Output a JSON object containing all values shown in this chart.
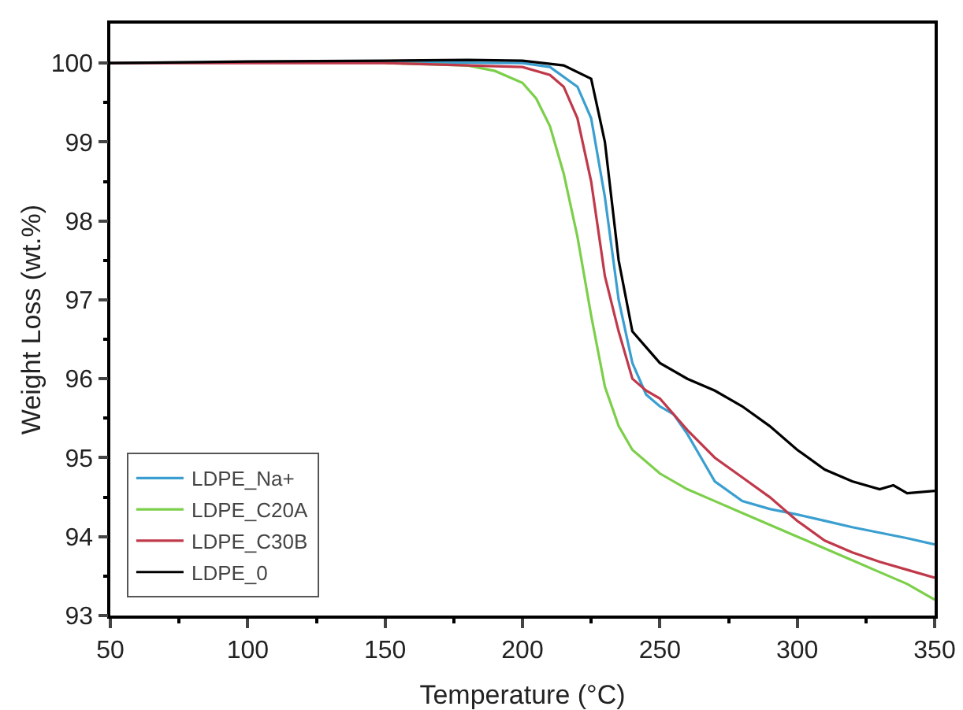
{
  "chart_data": {
    "type": "line",
    "xlabel": "Temperature (°C)",
    "ylabel": "Weight Loss (wt.%)",
    "xlim": [
      50,
      350
    ],
    "xticks": [
      50,
      100,
      150,
      200,
      250,
      300,
      350
    ],
    "ylim": [
      93,
      100.5
    ],
    "yticks": [
      93,
      94,
      95,
      96,
      97,
      98,
      99,
      100
    ],
    "grid": false,
    "legend": "bottom left",
    "marker": "none",
    "line_style": "solid",
    "series": [
      {
        "name": "LDPE_Na+",
        "color": "#3a9fd0",
        "x": [
          50,
          100,
          150,
          200,
          210,
          220,
          225,
          230,
          235,
          240,
          245,
          250,
          255,
          260,
          265,
          270,
          280,
          290,
          300,
          310,
          320,
          330,
          340,
          350
        ],
        "values": [
          100,
          100.01,
          100.01,
          100,
          99.95,
          99.7,
          99.3,
          98.3,
          97.0,
          96.2,
          95.8,
          95.65,
          95.55,
          95.3,
          95.0,
          94.7,
          94.45,
          94.35,
          94.28,
          94.2,
          94.12,
          94.05,
          93.98,
          93.9
        ]
      },
      {
        "name": "LDPE_C20A",
        "color": "#7ccf4a",
        "x": [
          150,
          180,
          190,
          200,
          205,
          210,
          215,
          220,
          225,
          230,
          235,
          240,
          250,
          260,
          270,
          280,
          290,
          300,
          310,
          320,
          330,
          340,
          350
        ],
        "values": [
          100,
          99.97,
          99.9,
          99.75,
          99.55,
          99.2,
          98.6,
          97.8,
          96.8,
          95.9,
          95.4,
          95.1,
          94.8,
          94.6,
          94.45,
          94.3,
          94.15,
          94.0,
          93.85,
          93.7,
          93.55,
          93.4,
          93.2
        ]
      },
      {
        "name": "LDPE_C30B",
        "color": "#c0394b",
        "x": [
          50,
          100,
          150,
          200,
          210,
          215,
          220,
          225,
          230,
          235,
          240,
          245,
          250,
          260,
          270,
          280,
          290,
          300,
          310,
          320,
          330,
          340,
          350
        ],
        "values": [
          100,
          100,
          100,
          99.95,
          99.85,
          99.7,
          99.3,
          98.5,
          97.3,
          96.6,
          96.0,
          95.85,
          95.75,
          95.35,
          95.0,
          94.75,
          94.5,
          94.2,
          93.95,
          93.8,
          93.68,
          93.58,
          93.48
        ]
      },
      {
        "name": "LDPE_0",
        "color": "#000000",
        "x": [
          50,
          100,
          150,
          180,
          200,
          215,
          225,
          230,
          235,
          240,
          245,
          250,
          260,
          270,
          280,
          290,
          300,
          310,
          320,
          330,
          335,
          340,
          350
        ],
        "values": [
          100,
          100.02,
          100.03,
          100.04,
          100.03,
          99.97,
          99.8,
          99.0,
          97.5,
          96.6,
          96.4,
          96.2,
          96.0,
          95.85,
          95.65,
          95.4,
          95.1,
          94.85,
          94.7,
          94.6,
          94.65,
          94.55,
          94.58
        ]
      }
    ]
  }
}
